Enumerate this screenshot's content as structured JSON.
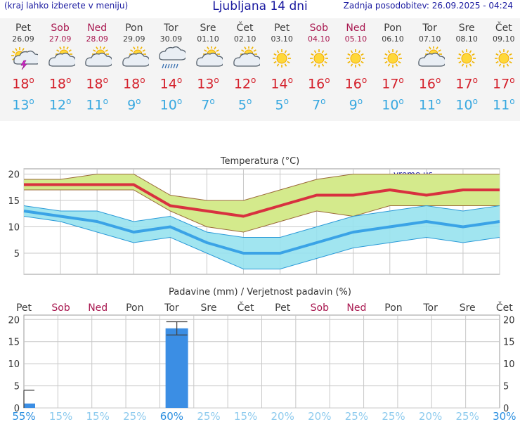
{
  "header": {
    "menu_hint": "(kraj lahko izberete v meniju)",
    "title": "Ljubljana 14 dni",
    "updated": "Zadnja posodobitev: 26.09.2025 - 04:24"
  },
  "forecast": [
    {
      "day": "Pet",
      "date": "26.09",
      "weekend": false,
      "icon": "sun-cloud-thunder-icon",
      "max": "18",
      "min": "13"
    },
    {
      "day": "Sob",
      "date": "27.09",
      "weekend": true,
      "icon": "sun-cloud-icon",
      "max": "18",
      "min": "12"
    },
    {
      "day": "Ned",
      "date": "28.09",
      "weekend": true,
      "icon": "sun-cloud-icon",
      "max": "18",
      "min": "11"
    },
    {
      "day": "Pon",
      "date": "29.09",
      "weekend": false,
      "icon": "sun-cloud-icon",
      "max": "18",
      "min": "9"
    },
    {
      "day": "Tor",
      "date": "30.09",
      "weekend": false,
      "icon": "cloud-rain-icon",
      "max": "14",
      "min": "10"
    },
    {
      "day": "Sre",
      "date": "01.10",
      "weekend": false,
      "icon": "sun-cloud-icon",
      "max": "13",
      "min": "7"
    },
    {
      "day": "Čet",
      "date": "02.10",
      "weekend": false,
      "icon": "sun-cloud-icon",
      "max": "12",
      "min": "5"
    },
    {
      "day": "Pet",
      "date": "03.10",
      "weekend": false,
      "icon": "sun-icon",
      "max": "14",
      "min": "5"
    },
    {
      "day": "Sob",
      "date": "04.10",
      "weekend": true,
      "icon": "sun-icon",
      "max": "16",
      "min": "7"
    },
    {
      "day": "Ned",
      "date": "05.10",
      "weekend": true,
      "icon": "sun-icon",
      "max": "16",
      "min": "9"
    },
    {
      "day": "Pon",
      "date": "06.10",
      "weekend": false,
      "icon": "sun-icon",
      "max": "17",
      "min": "10"
    },
    {
      "day": "Tor",
      "date": "07.10",
      "weekend": false,
      "icon": "sun-cloud-icon",
      "max": "16",
      "min": "11"
    },
    {
      "day": "Sre",
      "date": "08.10",
      "weekend": false,
      "icon": "sun-icon",
      "max": "17",
      "min": "10"
    },
    {
      "day": "Čet",
      "date": "09.10",
      "weekend": false,
      "icon": "sun-icon",
      "max": "17",
      "min": "11"
    }
  ],
  "colors": {
    "max_line": "#d8313f",
    "max_band": "#d4ea8c",
    "min_line": "#3aa3e6",
    "min_band": "#97e2ee",
    "bar": "#3b8ee4",
    "weekday": "#3c3c3c",
    "weekend": "#a8174f",
    "prob_high": "#2b8fe0",
    "prob_low": "#8ecbee"
  },
  "chart_data": [
    {
      "type": "line",
      "title": "Temperatura (°C)",
      "watermark": "vreme.us",
      "x": [
        "Pet",
        "Sob",
        "Ned",
        "Pon",
        "Tor",
        "Sre",
        "Čet",
        "Pet",
        "Sob",
        "Ned",
        "Pon",
        "Tor",
        "Sre",
        "Čet"
      ],
      "ylim": [
        1,
        21
      ],
      "yticks": [
        5,
        10,
        15,
        20
      ],
      "grid": true,
      "series": [
        {
          "values": [
            18,
            18,
            18,
            18,
            14,
            13,
            12,
            14,
            16,
            16,
            17,
            16,
            17,
            17
          ],
          "band_low": [
            17,
            17,
            17,
            17,
            13,
            10,
            9,
            11,
            13,
            12,
            14,
            14,
            14,
            14
          ],
          "band_high": [
            19,
            19,
            20,
            20,
            16,
            15,
            15,
            17,
            19,
            20,
            20,
            20,
            20,
            20
          ]
        },
        {
          "values": [
            13,
            12,
            11,
            9,
            10,
            7,
            5,
            5,
            7,
            9,
            10,
            11,
            10,
            11
          ],
          "band_low": [
            12,
            11,
            9,
            7,
            8,
            5,
            2,
            2,
            4,
            6,
            7,
            8,
            7,
            8
          ],
          "band_high": [
            14,
            13,
            13,
            11,
            12,
            9,
            8,
            8,
            10,
            12,
            13,
            14,
            13,
            14
          ]
        }
      ]
    },
    {
      "type": "bar",
      "title": "Padavine (mm) / Verjetnost padavin (%)",
      "categories": [
        "Pet",
        "Sob",
        "Ned",
        "Pon",
        "Tor",
        "Sre",
        "Čet",
        "Pet",
        "Sob",
        "Ned",
        "Pon",
        "Tor",
        "Sre",
        "Čet"
      ],
      "values": [
        1,
        0,
        0,
        0,
        18,
        0,
        0,
        0,
        0,
        0,
        0,
        0,
        0,
        0
      ],
      "error_high": [
        4,
        0,
        0,
        0,
        19.5,
        0,
        0,
        0,
        0,
        0,
        0,
        0,
        0,
        0
      ],
      "error_low": [
        0,
        0,
        0,
        0,
        16.5,
        0,
        0,
        0,
        0,
        0,
        0,
        0,
        0,
        0
      ],
      "probability": [
        "55%",
        "15%",
        "15%",
        "25%",
        "60%",
        "25%",
        "15%",
        "20%",
        "20%",
        "25%",
        "25%",
        "20%",
        "25%",
        "30%"
      ],
      "ylim": [
        0,
        21
      ],
      "yticks": [
        0,
        5,
        10,
        15,
        20
      ]
    }
  ]
}
